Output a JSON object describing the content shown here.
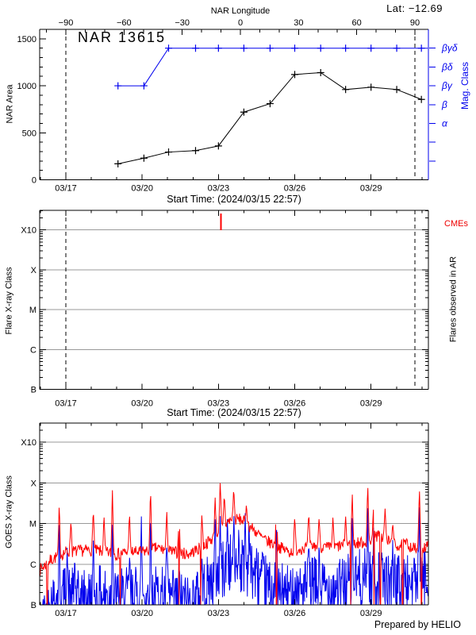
{
  "palette": {
    "blue": "#0000ee",
    "red": "#ee0000",
    "grid": "#999999",
    "black": "#000000",
    "background": "#ffffff"
  },
  "chart_data": [
    {
      "type": "line",
      "title": "NAR 13615",
      "lat_label": "Lat: −12.69",
      "top_xlabel": "NAR Longitude",
      "xlabel": "Start Time: (2024/03/15 22:57)",
      "ylabel": "NAR Area",
      "right_ylabel": "Mag. Class",
      "xlim_days": [
        15.96,
        31.23
      ],
      "ylim": [
        0,
        1600
      ],
      "yticks": [
        0,
        500,
        1000,
        1500
      ],
      "y_minor_step": 100,
      "xticks": [
        {
          "day": 17,
          "label": "03/17"
        },
        {
          "day": 20,
          "label": "03/20"
        },
        {
          "day": 23,
          "label": "03/23"
        },
        {
          "day": 26,
          "label": "03/26"
        },
        {
          "day": 29,
          "label": "03/29"
        }
      ],
      "x_minor_step_days": 1,
      "top_xticks": [
        {
          "lon": -90,
          "label": "−90"
        },
        {
          "lon": -60,
          "label": "−60"
        },
        {
          "lon": -30,
          "label": "−30"
        },
        {
          "lon": 0,
          "label": "0"
        },
        {
          "lon": 30,
          "label": "30"
        },
        {
          "lon": 60,
          "label": "60"
        },
        {
          "lon": 90,
          "label": "90"
        }
      ],
      "top_x_minor_step": 10,
      "dashed_lines_days": [
        17.0,
        30.72
      ],
      "mag_levels": [
        {
          "value": 1400,
          "label": "βγδ"
        },
        {
          "value": 1200,
          "label": "βδ"
        },
        {
          "value": 1000,
          "label": "βγ"
        },
        {
          "value": 800,
          "label": "β"
        },
        {
          "value": 600,
          "label": "α"
        },
        {
          "value": 400,
          "label": ""
        },
        {
          "value": 200,
          "label": ""
        }
      ],
      "series": [
        {
          "name": "nar-area",
          "color": "#000000",
          "marker": "+",
          "x": [
            19.05,
            20.07,
            21.04,
            22.1,
            23.0,
            24.0,
            25.03,
            26.0,
            27.02,
            28.0,
            29.0,
            30.01,
            30.98
          ],
          "y": [
            170,
            230,
            295,
            310,
            360,
            720,
            810,
            1120,
            1140,
            960,
            985,
            960,
            855
          ]
        },
        {
          "name": "mag-class",
          "color": "#0000ee",
          "marker": "+",
          "x": [
            19.05,
            20.07,
            21.04,
            22.1,
            23.0,
            24.0,
            25.03,
            26.0,
            27.02,
            28.0,
            29.0,
            30.01,
            30.98
          ],
          "y": [
            1000,
            1000,
            1400,
            1400,
            1400,
            1400,
            1400,
            1400,
            1400,
            1400,
            1400,
            1400,
            1400
          ],
          "classes": [
            "βγ",
            "βγ",
            "βγδ",
            "βγδ",
            "βγδ",
            "βγδ",
            "βγδ",
            "βγδ",
            "βγδ",
            "βγδ",
            "βγδ",
            "βγδ",
            "βγδ"
          ],
          "extend_line_to_day": 31.23
        }
      ]
    },
    {
      "type": "event-timeline",
      "ylabel": "Flare X-ray Class",
      "right_label": "Flares observed in AR",
      "cme_label": "CMEs",
      "xlabel": "Start Time: (2024/03/15 22:57)",
      "xlim_days": [
        15.96,
        31.23
      ],
      "xticks": [
        {
          "day": 17,
          "label": "03/17"
        },
        {
          "day": 20,
          "label": "03/20"
        },
        {
          "day": 23,
          "label": "03/23"
        },
        {
          "day": 26,
          "label": "03/26"
        },
        {
          "day": 29,
          "label": "03/29"
        }
      ],
      "x_minor_step_days": 1,
      "yticks": [
        {
          "u": 4,
          "label": "X10"
        },
        {
          "u": 3,
          "label": "X"
        },
        {
          "u": 2,
          "label": "M"
        },
        {
          "u": 1,
          "label": "C"
        },
        {
          "u": 0,
          "label": "B"
        }
      ],
      "grid_levels_u": [
        1,
        2,
        3,
        4
      ],
      "dashed_lines_days": [
        17.0,
        30.72
      ],
      "cme_events_days": [
        23.1
      ],
      "flare_events": []
    },
    {
      "type": "line",
      "ylabel": "GOES X-ray Class",
      "credit": "Prepared by HELIO",
      "xlim_days": [
        15.96,
        31.23
      ],
      "xticks": [
        {
          "day": 17,
          "label": "03/17"
        },
        {
          "day": 20,
          "label": "03/20"
        },
        {
          "day": 23,
          "label": "03/23"
        },
        {
          "day": 26,
          "label": "03/26"
        },
        {
          "day": 29,
          "label": "03/29"
        }
      ],
      "x_minor_step_days": 1,
      "yticks": [
        {
          "u": 4,
          "label": "X10"
        },
        {
          "u": 3,
          "label": "X"
        },
        {
          "u": 2,
          "label": "M"
        },
        {
          "u": 1,
          "label": "C"
        },
        {
          "u": 0,
          "label": "B"
        }
      ],
      "grid_levels_u": [
        1,
        2,
        3,
        4
      ],
      "unit_note": "u = log10(flux) + 7 : B=0, C=1, M=2, X=3, X10=4",
      "series": [
        {
          "name": "goes-long-1-8A",
          "color": "#ff0000",
          "noise_amp": 0.3,
          "spike_width_days": 0.055,
          "baseline": [
            [
              15.96,
              0.85
            ],
            [
              16.4,
              1.1
            ],
            [
              17.0,
              1.3
            ],
            [
              18.0,
              1.35
            ],
            [
              19.0,
              1.25
            ],
            [
              19.5,
              1.3
            ],
            [
              20.0,
              1.3
            ],
            [
              20.6,
              1.4
            ],
            [
              21.2,
              1.3
            ],
            [
              21.8,
              1.25
            ],
            [
              22.3,
              1.4
            ],
            [
              22.8,
              1.65
            ],
            [
              23.1,
              1.9
            ],
            [
              23.5,
              2.1
            ],
            [
              23.9,
              2.1
            ],
            [
              24.3,
              1.9
            ],
            [
              24.8,
              1.6
            ],
            [
              25.3,
              1.45
            ],
            [
              25.8,
              1.3
            ],
            [
              26.3,
              1.4
            ],
            [
              26.8,
              1.45
            ],
            [
              27.3,
              1.4
            ],
            [
              27.8,
              1.45
            ],
            [
              28.3,
              1.5
            ],
            [
              28.8,
              1.55
            ],
            [
              29.3,
              1.7
            ],
            [
              29.6,
              1.6
            ],
            [
              30.0,
              1.45
            ],
            [
              30.4,
              1.5
            ],
            [
              30.8,
              1.35
            ],
            [
              31.23,
              1.45
            ]
          ],
          "spikes": [
            [
              16.74,
              2.5
            ],
            [
              17.2,
              2.1
            ],
            [
              18.08,
              2.4
            ],
            [
              18.5,
              2.2
            ],
            [
              18.83,
              2.85
            ],
            [
              19.5,
              2.3
            ],
            [
              20.33,
              2.9
            ],
            [
              20.97,
              2.3
            ],
            [
              21.45,
              2.2
            ],
            [
              22.35,
              2.25
            ],
            [
              22.87,
              2.65
            ],
            [
              23.07,
              3.05
            ],
            [
              23.23,
              2.75
            ],
            [
              23.6,
              2.9
            ],
            [
              24.1,
              2.5
            ],
            [
              25.28,
              2.7
            ],
            [
              26.0,
              2.2
            ],
            [
              26.55,
              2.3
            ],
            [
              26.96,
              2.2
            ],
            [
              27.5,
              2.15
            ],
            [
              28.0,
              2.2
            ],
            [
              28.26,
              2.8
            ],
            [
              28.87,
              3.0
            ],
            [
              29.1,
              2.45
            ],
            [
              29.55,
              2.4
            ],
            [
              29.85,
              2.05
            ],
            [
              30.9,
              2.95
            ]
          ],
          "gaps": [
            16.27,
            19.14,
            21.45,
            22.3,
            25.28,
            28.2,
            29.12,
            29.37,
            30.24,
            30.98
          ]
        },
        {
          "name": "goes-short-0.5-4A",
          "color": "#0000ee",
          "noise_amp": 1.5,
          "spike_width_days": 0.04,
          "baseline": [
            [
              15.96,
              -0.6
            ],
            [
              16.5,
              0.1
            ],
            [
              17.0,
              0.25
            ],
            [
              17.5,
              0.1
            ],
            [
              18.0,
              0.2
            ],
            [
              18.5,
              0.25
            ],
            [
              19.0,
              0.15
            ],
            [
              19.5,
              0.2
            ],
            [
              20.0,
              0.3
            ],
            [
              20.5,
              0.25
            ],
            [
              21.0,
              0.2
            ],
            [
              21.5,
              0.05
            ],
            [
              22.0,
              0.1
            ],
            [
              22.5,
              0.4
            ],
            [
              23.0,
              0.8
            ],
            [
              23.5,
              1.0
            ],
            [
              24.0,
              1.0
            ],
            [
              24.4,
              0.8
            ],
            [
              24.8,
              0.5
            ],
            [
              25.3,
              0.3
            ],
            [
              25.8,
              0.25
            ],
            [
              26.3,
              0.4
            ],
            [
              26.8,
              0.45
            ],
            [
              27.3,
              0.4
            ],
            [
              27.8,
              0.45
            ],
            [
              28.3,
              0.6
            ],
            [
              28.8,
              0.65
            ],
            [
              29.3,
              0.6
            ],
            [
              29.8,
              0.5
            ],
            [
              30.3,
              0.55
            ],
            [
              30.8,
              0.6
            ],
            [
              31.23,
              0.65
            ]
          ],
          "spikes": [
            [
              16.74,
              2.05
            ],
            [
              17.05,
              1.45
            ],
            [
              17.35,
              1.25
            ],
            [
              18.08,
              1.6
            ],
            [
              18.83,
              2.3
            ],
            [
              19.5,
              1.3
            ],
            [
              19.97,
              2.25
            ],
            [
              20.33,
              2.1
            ],
            [
              20.97,
              1.7
            ],
            [
              21.45,
              1.1
            ],
            [
              22.35,
              1.2
            ],
            [
              22.87,
              2.2
            ],
            [
              23.07,
              2.3
            ],
            [
              23.35,
              2.2
            ],
            [
              23.6,
              2.25
            ],
            [
              23.8,
              1.9
            ],
            [
              24.05,
              2.3
            ],
            [
              24.2,
              2.2
            ],
            [
              25.28,
              2.2
            ],
            [
              26.55,
              1.6
            ],
            [
              26.96,
              1.5
            ],
            [
              28.26,
              2.4
            ],
            [
              28.87,
              2.5
            ],
            [
              29.1,
              2.0
            ],
            [
              29.85,
              1.6
            ],
            [
              30.9,
              2.5
            ]
          ],
          "gaps": []
        }
      ]
    }
  ]
}
